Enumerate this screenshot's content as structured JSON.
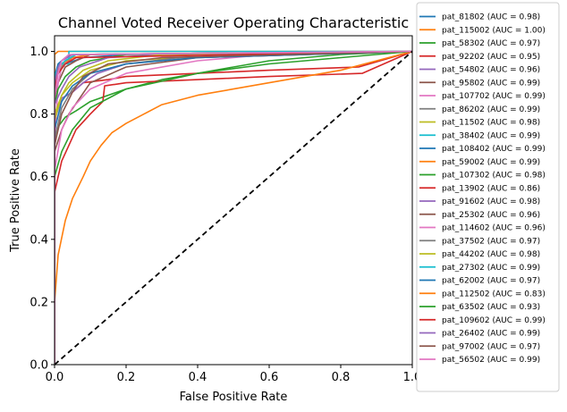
{
  "chart_data": {
    "type": "line",
    "title": "Channel Voted Receiver Operating Characteristic",
    "xlabel": "False Positive Rate",
    "ylabel": "True Positive Rate",
    "xlim": [
      0.0,
      1.0
    ],
    "ylim": [
      0.0,
      1.05
    ],
    "x_ticks": [
      "0.0",
      "0.2",
      "0.4",
      "0.6",
      "0.8",
      "1.0"
    ],
    "y_ticks": [
      "0.0",
      "0.2",
      "0.4",
      "0.6",
      "0.8",
      "1.0"
    ],
    "grid": false,
    "legend_position": "right",
    "reference_line": {
      "style": "dashed",
      "color": "#000000",
      "x": [
        0,
        1
      ],
      "y": [
        0,
        1
      ]
    },
    "series": [
      {
        "name": "pat_81802 (AUC = 0.98)",
        "color": "#1f77b4",
        "x": [
          0,
          0,
          0.01,
          0.03,
          0.08,
          0.2,
          1
        ],
        "y": [
          0,
          0.9,
          0.93,
          0.96,
          0.98,
          0.99,
          1
        ]
      },
      {
        "name": "pat_115002 (AUC = 1.00)",
        "color": "#ff7f0e",
        "x": [
          0,
          0,
          0.01,
          1
        ],
        "y": [
          0,
          0.99,
          1,
          1
        ]
      },
      {
        "name": "pat_58302 (AUC = 0.97)",
        "color": "#2ca02c",
        "x": [
          0,
          0,
          0.01,
          0.03,
          0.06,
          0.1,
          0.2,
          0.3,
          0.4,
          0.5,
          0.6,
          0.8,
          1
        ],
        "y": [
          0,
          0.7,
          0.76,
          0.79,
          0.81,
          0.84,
          0.88,
          0.91,
          0.93,
          0.95,
          0.97,
          0.99,
          1
        ]
      },
      {
        "name": "pat_92202 (AUC = 0.95)",
        "color": "#d62728",
        "x": [
          0,
          0,
          0.02,
          0.05,
          0.08,
          0.15,
          0.2,
          0.4,
          0.6,
          0.85,
          1
        ],
        "y": [
          0,
          0.8,
          0.85,
          0.87,
          0.9,
          0.91,
          0.92,
          0.93,
          0.94,
          0.95,
          1
        ]
      },
      {
        "name": "pat_54802 (AUC = 0.96)",
        "color": "#9467bd",
        "x": [
          0,
          0,
          0.02,
          0.05,
          0.08,
          0.12,
          0.2,
          0.4,
          1
        ],
        "y": [
          0,
          0.78,
          0.85,
          0.87,
          0.9,
          0.93,
          0.96,
          0.98,
          1
        ]
      },
      {
        "name": "pat_95802 (AUC = 0.99)",
        "color": "#8c564b",
        "x": [
          0,
          0,
          0.01,
          0.03,
          0.06,
          0.1,
          1
        ],
        "y": [
          0,
          0.85,
          0.9,
          0.95,
          0.97,
          0.99,
          1
        ]
      },
      {
        "name": "pat_107702 (AUC = 0.99)",
        "color": "#e377c2",
        "x": [
          0,
          0,
          0.01,
          0.02,
          0.05,
          0.1,
          1
        ],
        "y": [
          0,
          0.7,
          0.9,
          0.95,
          0.98,
          0.99,
          1
        ]
      },
      {
        "name": "pat_86202 (AUC = 0.99)",
        "color": "#7f7f7f",
        "x": [
          0,
          0,
          0.01,
          0.03,
          0.06,
          1
        ],
        "y": [
          0,
          0.88,
          0.93,
          0.97,
          0.99,
          1
        ]
      },
      {
        "name": "pat_11502 (AUC = 0.98)",
        "color": "#bcbd22",
        "x": [
          0,
          0,
          0.02,
          0.05,
          0.1,
          0.2,
          0.35,
          1
        ],
        "y": [
          0,
          0.8,
          0.86,
          0.9,
          0.94,
          0.97,
          0.98,
          1
        ]
      },
      {
        "name": "pat_38402 (AUC = 0.99)",
        "color": "#17becf",
        "x": [
          0,
          0,
          0.01,
          0.02,
          0.04,
          0.04,
          0.06,
          1
        ],
        "y": [
          0,
          0.9,
          0.95,
          0.96,
          0.96,
          1,
          1,
          1
        ]
      },
      {
        "name": "pat_108402 (AUC = 0.99)",
        "color": "#1f77b4",
        "x": [
          0,
          0,
          0.01,
          0.03,
          0.05,
          1
        ],
        "y": [
          0,
          0.92,
          0.96,
          0.98,
          0.99,
          1
        ]
      },
      {
        "name": "pat_59002 (AUC = 0.99)",
        "color": "#ff7f0e",
        "x": [
          0,
          0,
          0.01,
          0.02,
          0.05,
          0.1,
          1
        ],
        "y": [
          0,
          0.88,
          0.94,
          0.96,
          0.98,
          0.99,
          1
        ]
      },
      {
        "name": "pat_107302 (AUC = 0.98)",
        "color": "#2ca02c",
        "x": [
          0,
          0,
          0.01,
          0.03,
          0.06,
          0.1,
          0.2,
          1
        ],
        "y": [
          0,
          0.83,
          0.88,
          0.92,
          0.95,
          0.97,
          0.99,
          1
        ]
      },
      {
        "name": "pat_13902 (AUC = 0.86)",
        "color": "#d62728",
        "x": [
          0,
          0,
          0.02,
          0.04,
          0.06,
          0.1,
          0.135,
          0.14,
          0.2,
          0.4,
          0.6,
          0.86,
          1
        ],
        "y": [
          0,
          0.55,
          0.65,
          0.7,
          0.75,
          0.8,
          0.84,
          0.89,
          0.9,
          0.91,
          0.92,
          0.93,
          1
        ]
      },
      {
        "name": "pat_91602 (AUC = 0.98)",
        "color": "#9467bd",
        "x": [
          0,
          0,
          0.02,
          0.04,
          0.07,
          0.15,
          0.3,
          1
        ],
        "y": [
          0,
          0.83,
          0.88,
          0.92,
          0.95,
          0.98,
          0.99,
          1
        ]
      },
      {
        "name": "pat_25302 (AUC = 0.96)",
        "color": "#8c564b",
        "x": [
          0,
          0,
          0.02,
          0.04,
          0.07,
          0.1,
          0.2,
          0.4,
          1
        ],
        "y": [
          0,
          0.68,
          0.75,
          0.8,
          0.85,
          0.9,
          0.95,
          0.98,
          1
        ]
      },
      {
        "name": "pat_114602 (AUC = 0.96)",
        "color": "#e377c2",
        "x": [
          0,
          0,
          0.02,
          0.05,
          0.1,
          0.2,
          0.4,
          0.6,
          1
        ],
        "y": [
          0,
          0.62,
          0.75,
          0.82,
          0.88,
          0.93,
          0.97,
          0.99,
          1
        ]
      },
      {
        "name": "pat_37502 (AUC = 0.97)",
        "color": "#7f7f7f",
        "x": [
          0,
          0,
          0.02,
          0.05,
          0.1,
          0.2,
          0.35,
          1
        ],
        "y": [
          0,
          0.72,
          0.82,
          0.88,
          0.93,
          0.96,
          0.98,
          1
        ]
      },
      {
        "name": "pat_44202 (AUC = 0.98)",
        "color": "#bcbd22",
        "x": [
          0,
          0,
          0.02,
          0.04,
          0.08,
          0.15,
          0.3,
          1
        ],
        "y": [
          0,
          0.78,
          0.86,
          0.9,
          0.94,
          0.97,
          0.99,
          1
        ]
      },
      {
        "name": "pat_27302 (AUC = 0.99)",
        "color": "#17becf",
        "x": [
          0,
          0,
          0.01,
          0.03,
          0.06,
          1
        ],
        "y": [
          0,
          0.92,
          0.95,
          0.97,
          0.99,
          1
        ]
      },
      {
        "name": "pat_62002 (AUC = 0.97)",
        "color": "#1f77b4",
        "x": [
          0,
          0,
          0.02,
          0.05,
          0.1,
          0.2,
          0.4,
          1
        ],
        "y": [
          0,
          0.75,
          0.84,
          0.89,
          0.93,
          0.96,
          0.98,
          1
        ]
      },
      {
        "name": "pat_112502 (AUC = 0.83)",
        "color": "#ff7f0e",
        "x": [
          0,
          0,
          0.01,
          0.03,
          0.05,
          0.08,
          0.1,
          0.13,
          0.16,
          0.2,
          0.25,
          0.3,
          0.4,
          0.5,
          0.6,
          0.7,
          0.8,
          0.9,
          1
        ],
        "y": [
          0,
          0.2,
          0.35,
          0.46,
          0.53,
          0.6,
          0.65,
          0.7,
          0.74,
          0.77,
          0.8,
          0.83,
          0.86,
          0.88,
          0.9,
          0.92,
          0.94,
          0.97,
          1
        ]
      },
      {
        "name": "pat_63502 (AUC = 0.93)",
        "color": "#2ca02c",
        "x": [
          0,
          0,
          0.02,
          0.05,
          0.1,
          0.2,
          0.4,
          0.6,
          0.8,
          1
        ],
        "y": [
          0,
          0.6,
          0.68,
          0.75,
          0.82,
          0.88,
          0.93,
          0.96,
          0.98,
          1
        ]
      },
      {
        "name": "pat_109602 (AUC = 0.99)",
        "color": "#d62728",
        "x": [
          0,
          0,
          0.01,
          0.03,
          0.06,
          1
        ],
        "y": [
          0,
          0.88,
          0.93,
          0.96,
          0.98,
          1
        ]
      },
      {
        "name": "pat_26402 (AUC = 0.99)",
        "color": "#9467bd",
        "x": [
          0,
          0,
          0.01,
          0.02,
          0.05,
          1
        ],
        "y": [
          0,
          0.9,
          0.95,
          0.97,
          0.99,
          1
        ]
      },
      {
        "name": "pat_97002 (AUC = 0.97)",
        "color": "#8c564b",
        "x": [
          0,
          0,
          0.02,
          0.05,
          0.08,
          0.15,
          0.3,
          1
        ],
        "y": [
          0,
          0.7,
          0.8,
          0.87,
          0.92,
          0.96,
          0.98,
          1
        ]
      },
      {
        "name": "pat_56502 (AUC = 0.99)",
        "color": "#e377c2",
        "x": [
          0,
          0,
          0.01,
          0.02,
          0.04,
          1
        ],
        "y": [
          0,
          0.85,
          0.93,
          0.97,
          0.99,
          1
        ]
      }
    ]
  }
}
